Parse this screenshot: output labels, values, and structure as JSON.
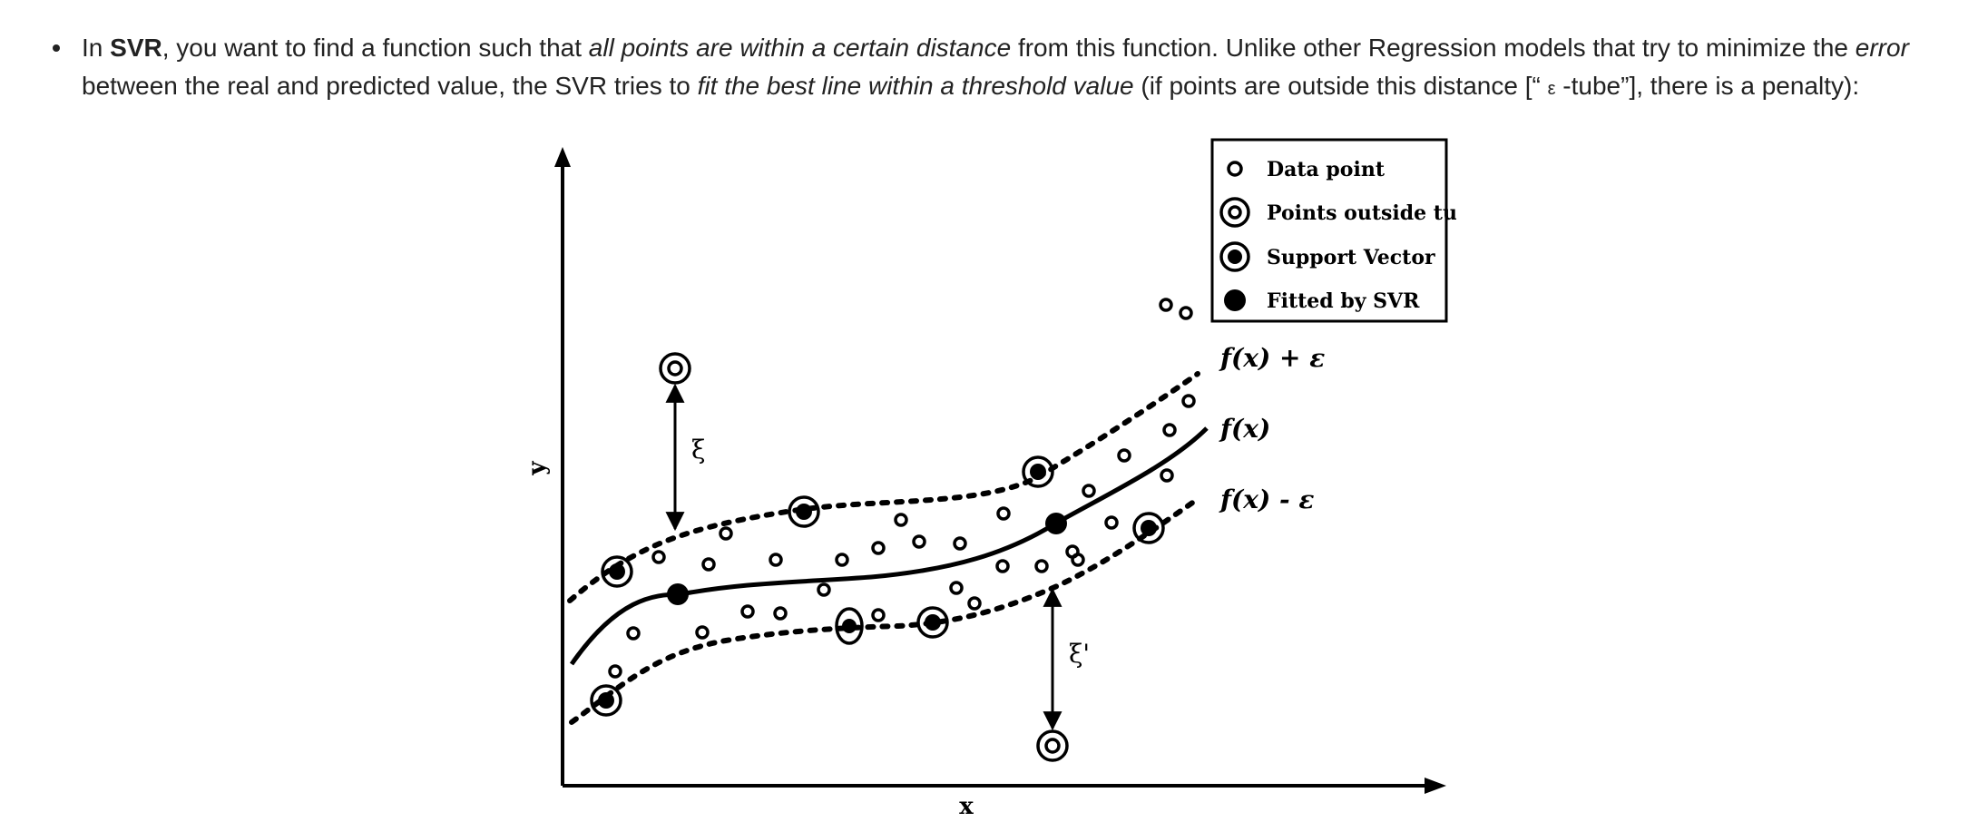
{
  "text": {
    "p1": "In ",
    "b1": "SVR",
    "p2": ", you want to find a function such that ",
    "i1": "all points are within a certain distance",
    "p3": " from this function. Unlike other Regression models that try to minimize the ",
    "i2": "error",
    "p4": " between the real and predicted value, the SVR tries to ",
    "i3": "fit the best line within a threshold value",
    "p5": " (if points are outside this distance [“ ",
    "eps": "ε",
    "p6": " -tube”], there is a penalty):"
  },
  "figure": {
    "legend": {
      "data_point": "Data point",
      "outside": "Points outside tube",
      "support": "Support Vector",
      "fitted": "Fitted by SVR"
    },
    "curve_labels": {
      "upper": "f(x) + ε",
      "middle": "f(x)",
      "lower": "f(x) - ε"
    },
    "axis": {
      "x": "x",
      "y": "y"
    },
    "slack": {
      "xi": "ξ",
      "xi_star": "ξ'"
    },
    "colors": {
      "ink": "#000000",
      "text": "#222222"
    }
  }
}
